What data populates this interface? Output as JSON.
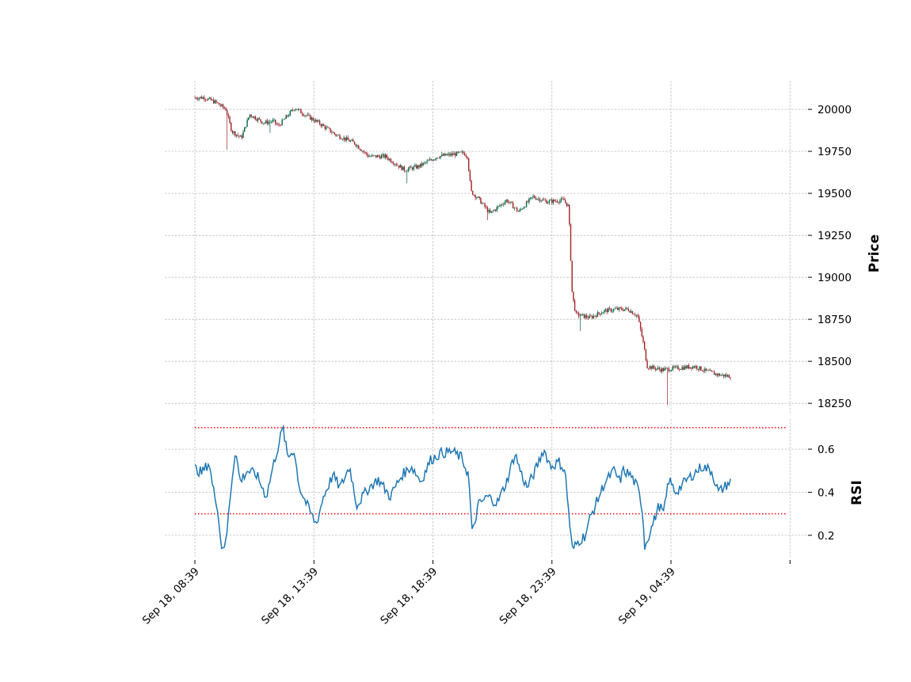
{
  "chart_data": [
    {
      "type": "candlestick",
      "panel": "price",
      "ylabel": "Price",
      "ylim": [
        18180,
        20170
      ],
      "yticks": [
        18250,
        18500,
        18750,
        19000,
        19250,
        19500,
        19750,
        20000
      ],
      "ytick_labels": [
        "18250",
        "18500",
        "18750",
        "19000",
        "19250",
        "19500",
        "19750",
        "20000"
      ],
      "y_axis_side": "right",
      "grid": true,
      "up_color": "#006340",
      "down_color": "#a02128",
      "price_path": [
        {
          "t": 0,
          "p": 20070
        },
        {
          "t": 0.4,
          "p": 20070
        },
        {
          "t": 0.9,
          "p": 20040
        },
        {
          "t": 1.3,
          "p": 20000
        },
        {
          "t": 1.55,
          "p": 19870
        },
        {
          "t": 1.95,
          "p": 19830
        },
        {
          "t": 2.3,
          "p": 19970
        },
        {
          "t": 2.9,
          "p": 19920
        },
        {
          "t": 3.3,
          "p": 19930
        },
        {
          "t": 3.5,
          "p": 19900
        },
        {
          "t": 4.2,
          "p": 20010
        },
        {
          "t": 4.6,
          "p": 19970
        },
        {
          "t": 5.2,
          "p": 19920
        },
        {
          "t": 5.9,
          "p": 19850
        },
        {
          "t": 6.7,
          "p": 19800
        },
        {
          "t": 7.3,
          "p": 19720
        },
        {
          "t": 8.0,
          "p": 19720
        },
        {
          "t": 8.8,
          "p": 19640
        },
        {
          "t": 9.4,
          "p": 19660
        },
        {
          "t": 10.2,
          "p": 19720
        },
        {
          "t": 11.3,
          "p": 19740
        },
        {
          "t": 11.45,
          "p": 19720
        },
        {
          "t": 11.6,
          "p": 19510
        },
        {
          "t": 11.9,
          "p": 19470
        },
        {
          "t": 12.4,
          "p": 19380
        },
        {
          "t": 13.1,
          "p": 19460
        },
        {
          "t": 13.6,
          "p": 19390
        },
        {
          "t": 14.2,
          "p": 19480
        },
        {
          "t": 14.8,
          "p": 19450
        },
        {
          "t": 15.5,
          "p": 19460
        },
        {
          "t": 15.7,
          "p": 19420
        },
        {
          "t": 15.85,
          "p": 18900
        },
        {
          "t": 16.0,
          "p": 18780
        },
        {
          "t": 16.6,
          "p": 18760
        },
        {
          "t": 17.2,
          "p": 18800
        },
        {
          "t": 17.7,
          "p": 18810
        },
        {
          "t": 18.2,
          "p": 18810
        },
        {
          "t": 18.6,
          "p": 18770
        },
        {
          "t": 18.85,
          "p": 18600
        },
        {
          "t": 19.0,
          "p": 18470
        },
        {
          "t": 19.6,
          "p": 18450
        },
        {
          "t": 20.3,
          "p": 18460
        },
        {
          "t": 21.0,
          "p": 18470
        },
        {
          "t": 21.5,
          "p": 18440
        },
        {
          "t": 22.0,
          "p": 18420
        },
        {
          "t": 22.5,
          "p": 18410
        }
      ],
      "candle_count": 400,
      "wick_events": [
        {
          "t": 1.35,
          "low": 19760
        },
        {
          "t": 3.15,
          "low": 19860
        },
        {
          "t": 8.9,
          "low": 19560
        },
        {
          "t": 12.3,
          "low": 19340
        },
        {
          "t": 16.2,
          "low": 18680
        },
        {
          "t": 19.85,
          "low": 18240
        }
      ]
    },
    {
      "type": "line",
      "panel": "rsi",
      "ylabel": "RSI",
      "ylim": [
        0.1,
        0.74
      ],
      "yticks": [
        0.2,
        0.4,
        0.6
      ],
      "ytick_labels": [
        "0.2",
        "0.4",
        "0.6"
      ],
      "y_axis_side": "right",
      "grid": true,
      "line_color": "#1f77b4",
      "threshold_color": "#ff0000",
      "thresholds": [
        0.7,
        0.3
      ],
      "rsi_path": [
        {
          "t": 0,
          "v": 0.51
        },
        {
          "t": 0.3,
          "v": 0.49
        },
        {
          "t": 0.6,
          "v": 0.54
        },
        {
          "t": 0.75,
          "v": 0.42
        },
        {
          "t": 0.95,
          "v": 0.34
        },
        {
          "t": 1.1,
          "v": 0.15
        },
        {
          "t": 1.3,
          "v": 0.16
        },
        {
          "t": 1.5,
          "v": 0.4
        },
        {
          "t": 1.7,
          "v": 0.6
        },
        {
          "t": 1.9,
          "v": 0.45
        },
        {
          "t": 2.2,
          "v": 0.5
        },
        {
          "t": 2.6,
          "v": 0.48
        },
        {
          "t": 3.0,
          "v": 0.38
        },
        {
          "t": 3.35,
          "v": 0.55
        },
        {
          "t": 3.7,
          "v": 0.7
        },
        {
          "t": 3.9,
          "v": 0.56
        },
        {
          "t": 4.15,
          "v": 0.6
        },
        {
          "t": 4.4,
          "v": 0.42
        },
        {
          "t": 4.75,
          "v": 0.33
        },
        {
          "t": 5.1,
          "v": 0.25
        },
        {
          "t": 5.4,
          "v": 0.38
        },
        {
          "t": 5.8,
          "v": 0.48
        },
        {
          "t": 6.1,
          "v": 0.42
        },
        {
          "t": 6.5,
          "v": 0.52
        },
        {
          "t": 6.8,
          "v": 0.34
        },
        {
          "t": 7.3,
          "v": 0.42
        },
        {
          "t": 7.7,
          "v": 0.46
        },
        {
          "t": 8.2,
          "v": 0.38
        },
        {
          "t": 8.7,
          "v": 0.48
        },
        {
          "t": 9.1,
          "v": 0.52
        },
        {
          "t": 9.5,
          "v": 0.45
        },
        {
          "t": 9.9,
          "v": 0.55
        },
        {
          "t": 10.3,
          "v": 0.58
        },
        {
          "t": 10.8,
          "v": 0.59
        },
        {
          "t": 11.2,
          "v": 0.56
        },
        {
          "t": 11.5,
          "v": 0.48
        },
        {
          "t": 11.65,
          "v": 0.2
        },
        {
          "t": 11.9,
          "v": 0.34
        },
        {
          "t": 12.3,
          "v": 0.38
        },
        {
          "t": 12.7,
          "v": 0.35
        },
        {
          "t": 13.1,
          "v": 0.45
        },
        {
          "t": 13.45,
          "v": 0.58
        },
        {
          "t": 13.7,
          "v": 0.49
        },
        {
          "t": 13.95,
          "v": 0.42
        },
        {
          "t": 14.3,
          "v": 0.5
        },
        {
          "t": 14.65,
          "v": 0.6
        },
        {
          "t": 14.95,
          "v": 0.52
        },
        {
          "t": 15.3,
          "v": 0.54
        },
        {
          "t": 15.55,
          "v": 0.5
        },
        {
          "t": 15.75,
          "v": 0.25
        },
        {
          "t": 15.85,
          "v": 0.13
        },
        {
          "t": 16.1,
          "v": 0.17
        },
        {
          "t": 16.4,
          "v": 0.2
        },
        {
          "t": 16.6,
          "v": 0.28
        },
        {
          "t": 16.9,
          "v": 0.36
        },
        {
          "t": 17.2,
          "v": 0.44
        },
        {
          "t": 17.6,
          "v": 0.5
        },
        {
          "t": 17.85,
          "v": 0.45
        },
        {
          "t": 18.0,
          "v": 0.5
        },
        {
          "t": 18.3,
          "v": 0.48
        },
        {
          "t": 18.6,
          "v": 0.42
        },
        {
          "t": 18.8,
          "v": 0.32
        },
        {
          "t": 18.9,
          "v": 0.15
        },
        {
          "t": 19.2,
          "v": 0.24
        },
        {
          "t": 19.5,
          "v": 0.34
        },
        {
          "t": 19.7,
          "v": 0.3
        },
        {
          "t": 19.9,
          "v": 0.46
        },
        {
          "t": 20.2,
          "v": 0.4
        },
        {
          "t": 20.6,
          "v": 0.45
        },
        {
          "t": 20.9,
          "v": 0.48
        },
        {
          "t": 21.3,
          "v": 0.52
        },
        {
          "t": 21.7,
          "v": 0.5
        },
        {
          "t": 22.0,
          "v": 0.4
        },
        {
          "t": 22.3,
          "v": 0.43
        },
        {
          "t": 22.5,
          "v": 0.45
        }
      ]
    }
  ],
  "x_axis": {
    "tick_labels": [
      "Sep 18, 08:39",
      "Sep 18, 13:39",
      "Sep 18, 18:39",
      "Sep 18, 23:39",
      "Sep 19, 04:39",
      ""
    ],
    "tick_hours_since_first": [
      0,
      5,
      10,
      15,
      20,
      25
    ]
  }
}
